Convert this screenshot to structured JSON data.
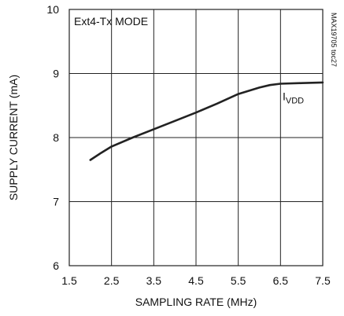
{
  "chart_data": {
    "type": "line",
    "title": "",
    "annotation": "Ext4-Tx MODE",
    "code": "MAX19705 toc27",
    "xlabel": "SAMPLING RATE (MHz)",
    "ylabel": "SUPPLY CURRENT (mA)",
    "xlim": [
      1.5,
      7.5
    ],
    "ylim": [
      6,
      10
    ],
    "x_ticks": [
      "1.5",
      "2.5",
      "3.5",
      "4.5",
      "5.5",
      "6.5",
      "7.5"
    ],
    "y_ticks": [
      "6",
      "7",
      "8",
      "9",
      "10"
    ],
    "grid": true,
    "series": [
      {
        "name": "VDD",
        "label_main": "I",
        "label_sub": "VDD",
        "x": [
          2.0,
          2.25,
          2.5,
          3.0,
          3.5,
          4.0,
          4.5,
          5.0,
          5.5,
          6.0,
          6.25,
          6.5,
          7.0,
          7.5
        ],
        "y": [
          7.65,
          7.76,
          7.86,
          8.0,
          8.13,
          8.26,
          8.39,
          8.53,
          8.68,
          8.78,
          8.82,
          8.84,
          8.85,
          8.86
        ]
      }
    ]
  }
}
